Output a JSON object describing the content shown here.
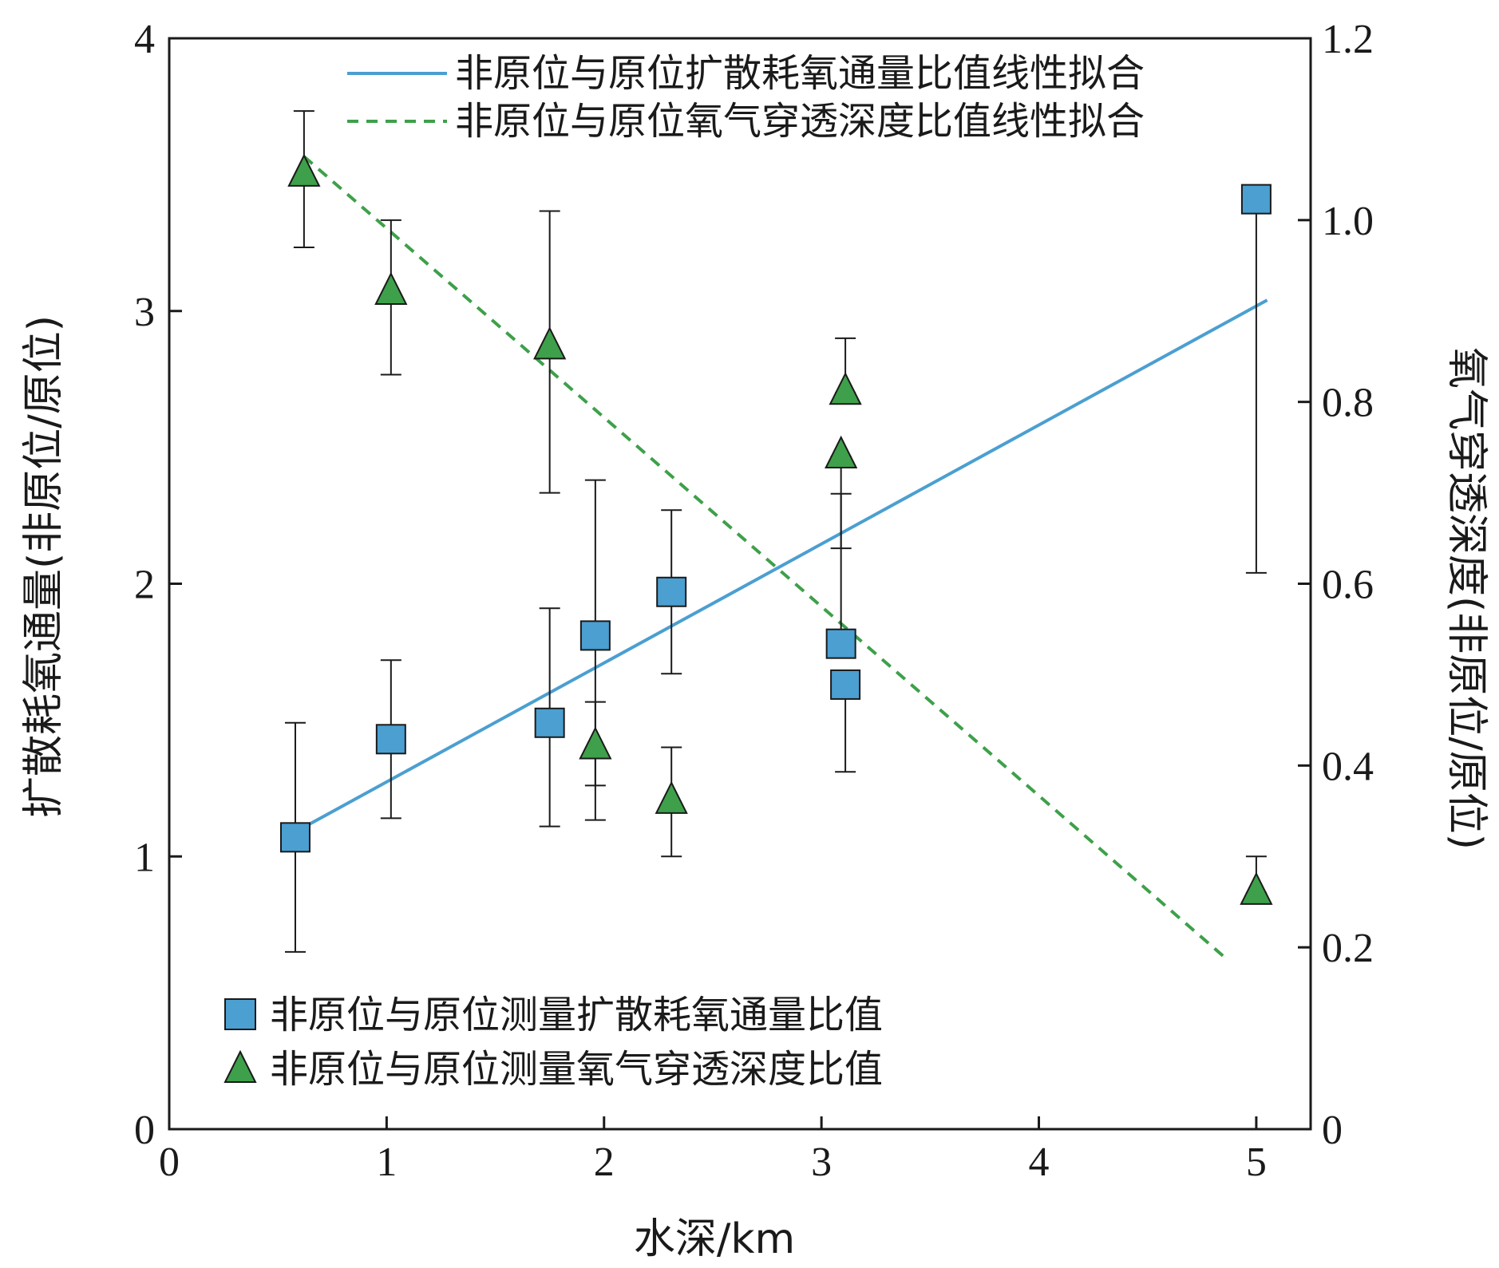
{
  "colors": {
    "blue": "#4b9fd1",
    "green": "#3ea04a",
    "axis": "#1a1a1a"
  },
  "chart_data": {
    "type": "scatter",
    "xlabel": "水深/km",
    "ylabel_left": "扩散耗氧通量(非原位/原位)",
    "ylabel_right": "氧气穿透深度(非原位/原位)",
    "xlim": [
      0,
      5.25
    ],
    "ylim_left": [
      0,
      4
    ],
    "ylim_right": [
      0,
      1.2
    ],
    "x_ticks": [
      0,
      1,
      2,
      3,
      4,
      5
    ],
    "y_ticks_left": [
      0,
      1,
      2,
      3,
      4
    ],
    "y_ticks_right": [
      0,
      0.2,
      0.4,
      0.6,
      0.8,
      1.0,
      1.2
    ],
    "y_tick_labels_right": [
      "0",
      "0.2",
      "0.4",
      "0.6",
      "0.8",
      "1.0",
      "1.2"
    ],
    "series": [
      {
        "name": "非原位与原位测量扩散耗氧通量比值",
        "marker": "square",
        "axis": "left",
        "points": [
          {
            "x": 0.58,
            "y": 1.07,
            "err_low": 0.65,
            "err_high": 1.49
          },
          {
            "x": 1.02,
            "y": 1.43,
            "err_low": 1.14,
            "err_high": 1.72
          },
          {
            "x": 1.75,
            "y": 1.49,
            "err_low": 1.11,
            "err_high": 1.91
          },
          {
            "x": 1.96,
            "y": 1.81,
            "err_low": 1.26,
            "err_high": 2.38
          },
          {
            "x": 2.31,
            "y": 1.97,
            "err_low": 1.67,
            "err_high": 2.27
          },
          {
            "x": 3.09,
            "y": 1.78,
            "err_low": 2.13,
            "err_high": 2.33
          },
          {
            "x": 3.11,
            "y": 1.63,
            "err_low": 1.31,
            "err_high": 1.63
          },
          {
            "x": 5.0,
            "y": 3.41,
            "err_low": 2.04,
            "err_high": 3.41
          }
        ]
      },
      {
        "name": "非原位与原位测量氧气穿透深度比值",
        "marker": "triangle",
        "axis": "right",
        "points": [
          {
            "x": 0.62,
            "y": 1.05,
            "err_low": 0.97,
            "err_high": 1.12
          },
          {
            "x": 1.02,
            "y": 0.92,
            "err_low": 0.83,
            "err_high": 1.0
          },
          {
            "x": 1.75,
            "y": 0.86,
            "err_low": 0.7,
            "err_high": 1.01
          },
          {
            "x": 1.96,
            "y": 0.42,
            "err_low": 0.34,
            "err_high": 0.47
          },
          {
            "x": 2.31,
            "y": 0.36,
            "err_low": 0.3,
            "err_high": 0.42
          },
          {
            "x": 3.09,
            "y": 0.74,
            "err_low": 0.54,
            "err_high": 0.74
          },
          {
            "x": 3.11,
            "y": 0.81,
            "err_low": 0.81,
            "err_high": 0.87
          },
          {
            "x": 5.0,
            "y": 0.26,
            "err_low": 0.26,
            "err_high": 0.3
          }
        ]
      }
    ],
    "fits": [
      {
        "name": "非原位与原位扩散耗氧通量比值线性拟合",
        "axis": "left",
        "style": "solid",
        "x": [
          0.58,
          5.05
        ],
        "y": [
          1.09,
          3.04
        ]
      },
      {
        "name": "非原位与原位氧气穿透深度比值线性拟合",
        "axis": "right",
        "style": "dashed",
        "x": [
          0.62,
          4.85
        ],
        "y": [
          1.07,
          0.19
        ]
      }
    ],
    "legend_top": "top-right",
    "legend_bottom": "bottom-left",
    "grid": false
  }
}
